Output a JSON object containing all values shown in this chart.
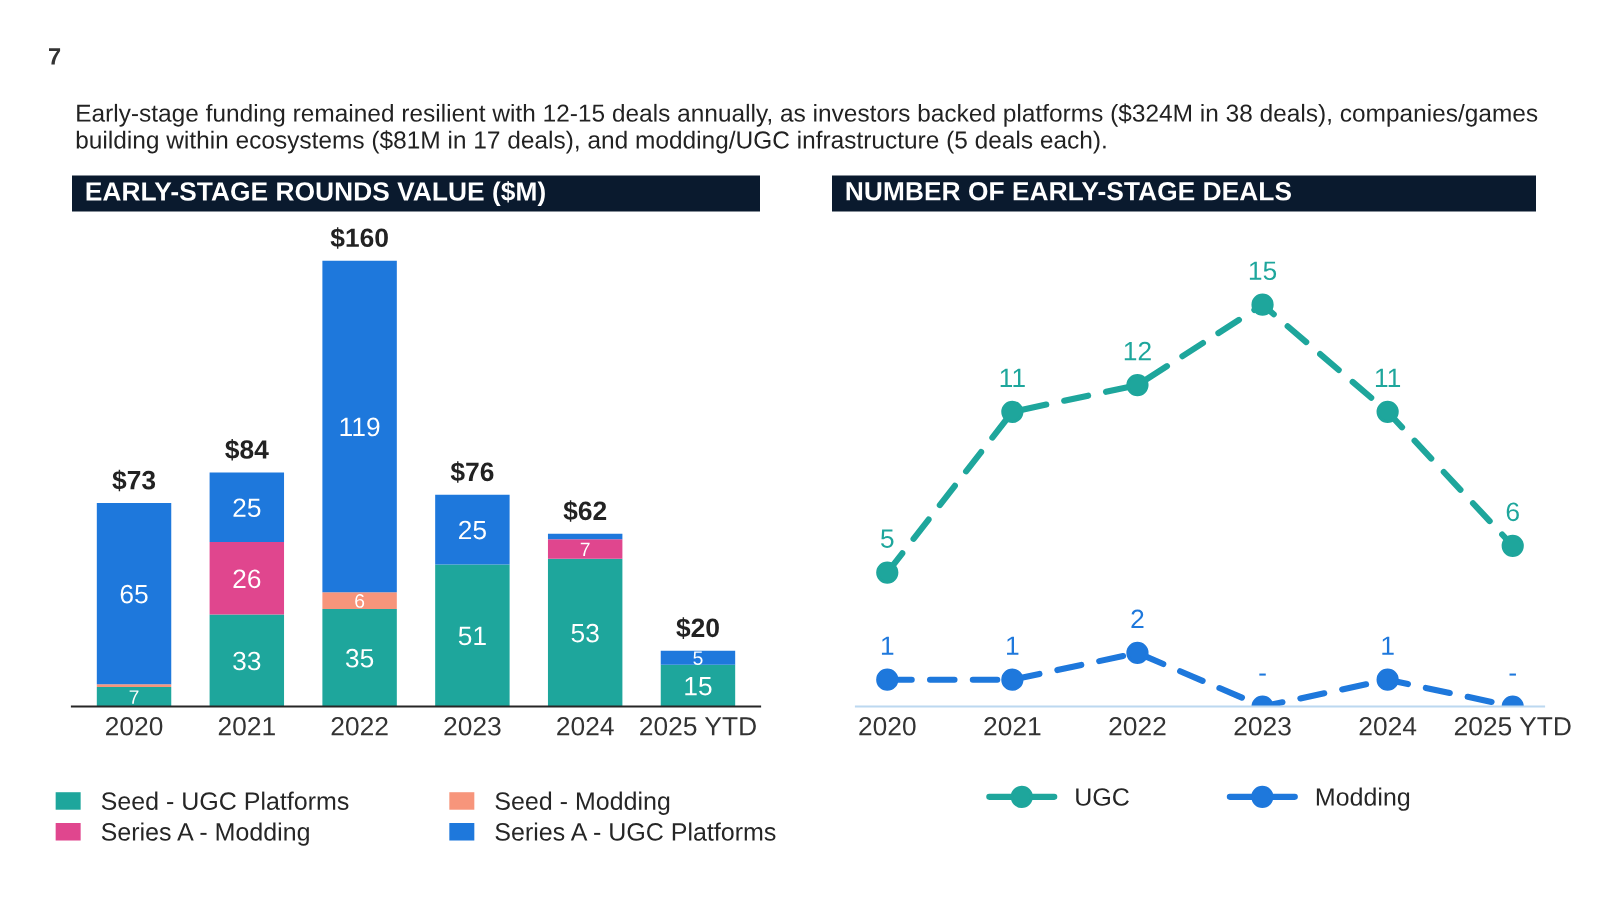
{
  "chart_data": [
    {
      "type": "bar",
      "title": "EARLY-STAGE ROUNDS VALUE ($M)",
      "stacked": true,
      "categories": [
        "2020",
        "2021",
        "2022",
        "2023",
        "2024",
        "2025 YTD"
      ],
      "series": [
        {
          "name": "Seed - UGC Platforms",
          "color": "#1ea69c",
          "values": [
            7,
            33,
            35,
            51,
            53,
            15
          ],
          "value_labels": [
            "7",
            "33",
            "35",
            "51",
            "53",
            "15"
          ]
        },
        {
          "name": "Seed - Modding",
          "color": "#f7957b",
          "values": [
            1,
            null,
            6,
            null,
            null,
            null
          ],
          "value_labels": [
            null,
            null,
            "6",
            null,
            null,
            null
          ]
        },
        {
          "name": "Series A - Modding",
          "color": "#e0468e",
          "values": [
            null,
            26,
            null,
            null,
            7,
            null
          ],
          "value_labels": [
            null,
            "26",
            null,
            null,
            "7",
            null
          ]
        },
        {
          "name": "Series A - UGC Platforms",
          "color": "#1e78dc",
          "values": [
            65,
            25,
            119,
            25,
            2,
            5
          ],
          "value_labels": [
            "65",
            "25",
            "119",
            "25",
            null,
            "5"
          ]
        }
      ],
      "totals": [
        "$73",
        "$84",
        "$160",
        "$76",
        "$62",
        "$20"
      ],
      "legend": "bottom",
      "annotations": [
        "7",
        "Early-stage funding remained resilient with 12-15 deals annually, as investors backed platforms ($324M in 38 deals), companies/games building within ecosystems ($81M in 17 deals), and modding/UGC infrastructure (5 deals each)."
      ]
    },
    {
      "type": "line",
      "title": "NUMBER OF EARLY-STAGE DEALS",
      "categories": [
        "2020",
        "2021",
        "2022",
        "2023",
        "2024",
        "2025 YTD"
      ],
      "series": [
        {
          "name": "UGC",
          "color": "#1ea69c",
          "values": [
            5,
            11,
            12,
            15,
            11,
            6
          ],
          "value_labels": [
            "5",
            "11",
            "12",
            "15",
            "11",
            "6"
          ]
        },
        {
          "name": "Modding",
          "color": "#1e78dc",
          "values": [
            1,
            1,
            2,
            0,
            1,
            0
          ],
          "value_labels": [
            "1",
            "1",
            "2",
            "-",
            "1",
            "-"
          ]
        }
      ],
      "marker": "circle",
      "line_style": "dashed",
      "legend": "bottom"
    }
  ]
}
